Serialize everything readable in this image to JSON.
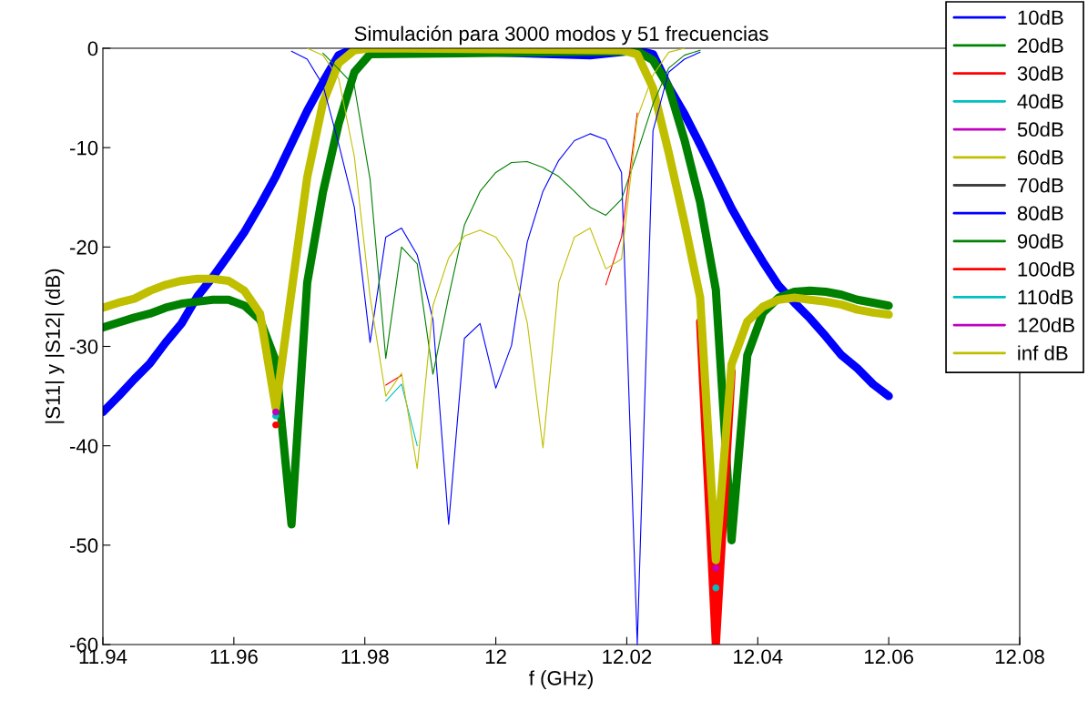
{
  "chart_data": {
    "type": "line",
    "title": "Simulación para 3000 modos y 51 frecuencias",
    "xlabel": "f (GHz)",
    "ylabel": "|S11| y |S12| (dB)",
    "xlim": [
      11.94,
      12.08
    ],
    "xticks": [
      11.94,
      11.96,
      11.98,
      12,
      12.02,
      12.04,
      12.06,
      12.08
    ],
    "ylim": [
      -60,
      0
    ],
    "yticks": [
      -60,
      -50,
      -40,
      -30,
      -20,
      -10,
      0
    ],
    "grid": false,
    "legend": "top right",
    "marker": "none",
    "line_style": "solid",
    "series": [
      {
        "color": "#0000ff",
        "x": [
          11.94,
          11.9424,
          11.9448,
          11.9472,
          11.9496,
          11.952,
          11.9544,
          11.9568,
          11.9592,
          11.9616,
          11.964,
          11.9664,
          11.9688,
          11.9712,
          11.9736,
          11.976,
          11.9784,
          12.0144,
          12.0216,
          12.024,
          12.0264,
          12.0288,
          12.0312,
          12.0336,
          12.036,
          12.0384,
          12.0408,
          12.0432,
          12.0456,
          12.048,
          12.0504,
          12.0528,
          12.0552,
          12.0576,
          12.06
        ],
        "values": [
          -36.6,
          -35.0,
          -33.3,
          -31.7,
          -29.6,
          -27.7,
          -25.0,
          -23.0,
          -20.8,
          -18.5,
          -15.8,
          -12.9,
          -9.6,
          -6.3,
          -3.4,
          -0.7,
          0,
          -0.7,
          -0.2,
          -0.6,
          -3.9,
          -6.6,
          -9.7,
          -12.9,
          -16.1,
          -18.9,
          -21.5,
          -23.9,
          -25.6,
          -27.2,
          -29.0,
          -30.9,
          -32.2,
          -33.8,
          -35.0
        ]
      },
      {
        "color": "#008000",
        "x": [
          11.94,
          11.9424,
          11.9448,
          11.9472,
          11.9496,
          11.952,
          11.9544,
          11.9568,
          11.9592,
          11.9616,
          11.964,
          11.9664,
          11.9688,
          11.9712,
          11.9736,
          11.976,
          11.9784,
          11.9808,
          12.0216,
          12.024,
          12.0264,
          12.0288,
          12.0312,
          12.0336,
          12.036,
          12.0384,
          12.0408,
          12.0432,
          12.0456,
          12.048,
          12.0504,
          12.0528,
          12.0552,
          12.0576,
          12.06
        ],
        "values": [
          -28.1,
          -27.6,
          -27.1,
          -26.7,
          -26.1,
          -25.7,
          -25.5,
          -25.3,
          -25.3,
          -25.9,
          -27.3,
          -31.5,
          -47.9,
          -23.6,
          -14.5,
          -7.6,
          -2.4,
          -0.6,
          -0.3,
          -1.2,
          -3.9,
          -9.2,
          -15.5,
          -24.3,
          -49.5,
          -30.9,
          -26.6,
          -25.1,
          -24.5,
          -24.4,
          -24.5,
          -24.8,
          -25.3,
          -25.6,
          -25.9
        ]
      },
      {
        "color": "#ff0000",
        "x": [
          12.0312,
          12.0336,
          12.036
        ],
        "values": [
          -27.5,
          -60,
          -32.5
        ]
      },
      {
        "color": "#bfbf00",
        "x": [
          11.94,
          11.9424,
          11.9448,
          11.9472,
          11.9496,
          11.952,
          11.9544,
          11.9568,
          11.9592,
          11.9616,
          11.964,
          11.9664,
          11.9688,
          11.9712,
          11.9736,
          11.976,
          11.9784,
          11.9808,
          12.0192,
          12.0216,
          12.024,
          12.0264,
          12.0288,
          12.0312,
          12.0336,
          12.036,
          12.0384,
          12.0408,
          12.0432,
          12.0456,
          12.048,
          12.0504,
          12.0528,
          12.0552,
          12.0576,
          12.06
        ],
        "values": [
          -26.1,
          -25.6,
          -25.2,
          -24.4,
          -23.8,
          -23.4,
          -23.2,
          -23.2,
          -23.4,
          -24.4,
          -26.7,
          -36.2,
          -24.5,
          -13.0,
          -5.5,
          -1.5,
          -0.2,
          0,
          -0.2,
          -0.6,
          -4.0,
          -10.5,
          -17.5,
          -25.1,
          -51.5,
          -31.8,
          -27.5,
          -26.0,
          -25.3,
          -25.1,
          -25.3,
          -25.5,
          -25.8,
          -26.3,
          -26.6,
          -26.8
        ]
      },
      {
        "type": "scatter",
        "marker": "circle",
        "color": "#ff0000",
        "x": [
          11.9664
        ],
        "values": [
          -37.9
        ]
      },
      {
        "type": "scatter",
        "marker": "circle",
        "color": "#00bfbf",
        "x": [
          11.9664,
          12.0336
        ],
        "values": [
          -37.0,
          -54.3
        ]
      },
      {
        "type": "scatter",
        "marker": "circle",
        "color": "#bf00bf",
        "x": [
          11.9664,
          12.0336
        ],
        "values": [
          -36.6,
          -52.3
        ]
      },
      {
        "name": "10dB",
        "color": "#0000ff",
        "x": [
          11.9688,
          11.9712,
          11.9736,
          11.976,
          11.9784,
          11.9808,
          11.9832,
          11.9856,
          11.988,
          11.9904,
          11.9928,
          11.9952,
          11.9976,
          12.0,
          12.0024,
          12.0048,
          12.0072,
          12.0096,
          12.012,
          12.0144,
          12.0168,
          12.0192,
          12.0216,
          12.024,
          12.0264,
          12.0288,
          12.0312
        ],
        "values": [
          -0.3,
          -1.1,
          -3.7,
          -9.6,
          -16.0,
          -29.6,
          -19.0,
          -18.1,
          -20.8,
          -27.3,
          -47.9,
          -29.2,
          -27.7,
          -34.2,
          -29.9,
          -19.5,
          -14.4,
          -11.3,
          -9.3,
          -8.6,
          -9.2,
          -12.5,
          -60,
          -8.3,
          -2.4,
          -1.1,
          -0.4
        ]
      },
      {
        "name": "20dB",
        "color": "#008000",
        "x": [
          11.9736,
          11.976,
          11.9784,
          11.9808,
          11.9832,
          11.9856,
          11.988,
          11.9904,
          11.9928,
          11.9952,
          11.9976,
          12.0,
          12.0024,
          12.0048,
          12.0072,
          12.0096,
          12.012,
          12.0144,
          12.0168,
          12.0192,
          12.0216,
          12.024,
          12.0264,
          12.0288,
          12.0312
        ],
        "values": [
          -0.5,
          -2.1,
          -3.8,
          -13.2,
          -31.2,
          -20.0,
          -21.7,
          -32.8,
          -25.0,
          -17.8,
          -14.4,
          -12.5,
          -11.5,
          -11.4,
          -12.0,
          -12.9,
          -14.4,
          -16.0,
          -16.8,
          -15.2,
          -10.5,
          -5.6,
          -2.0,
          -0.7,
          -0.2
        ]
      },
      {
        "name": "30dB",
        "color": "#ff0000",
        "x": [
          11.9832,
          11.9856,
          12.0,
          12.0168,
          12.0192,
          12.0216
        ],
        "values": [
          -33.9,
          -32.9,
          null,
          -23.8,
          -19.0,
          -6.5
        ]
      },
      {
        "name": "40dB",
        "color": "#00bfbf"
      },
      {
        "name": "50dB",
        "color": "#bf00bf"
      },
      {
        "name": "60dB",
        "color": "#bfbf00"
      },
      {
        "name": "70dB",
        "color": "#404040"
      },
      {
        "name": "80dB",
        "color": "#0000ff"
      },
      {
        "name": "90dB",
        "color": "#008000"
      },
      {
        "name": "100dB",
        "color": "#ff0000"
      },
      {
        "name": "110dB",
        "color": "#00bfbf",
        "x": [
          11.9832,
          11.9856,
          11.988
        ],
        "values": [
          -35.5,
          -33.8,
          -40.0
        ]
      },
      {
        "name": "120dB",
        "color": "#bf00bf"
      },
      {
        "name": "inf dB",
        "color": "#bfbf00",
        "x": [
          11.9712,
          11.9736,
          11.976,
          11.9784,
          11.9808,
          11.9832,
          11.9856,
          11.988,
          11.9904,
          11.9928,
          11.9952,
          11.9976,
          12.0,
          12.0024,
          12.0048,
          12.0072,
          12.0096,
          12.012,
          12.0144,
          12.0168,
          12.0192,
          12.0216,
          12.024,
          12.0264,
          12.0288
        ],
        "values": [
          0,
          -0.7,
          -3.0,
          -10.9,
          -25.0,
          -35.0,
          -32.7,
          -42.3,
          -25.9,
          -21.1,
          -18.9,
          -18.3,
          -19.0,
          -21.3,
          -27.6,
          -40.2,
          -23.6,
          -19.0,
          -18.1,
          -22.2,
          -21.2,
          -7.0,
          -2.7,
          -0.4,
          0
        ]
      }
    ]
  }
}
